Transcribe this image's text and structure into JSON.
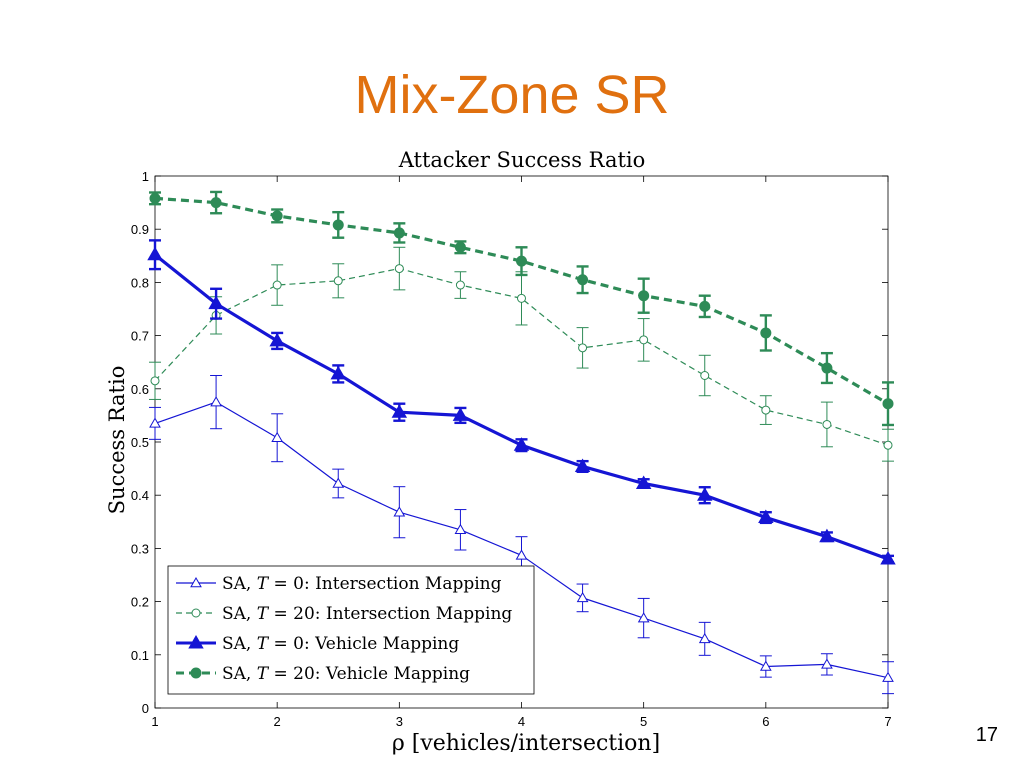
{
  "slide": {
    "title": "Mix-Zone SR",
    "page_number": "17"
  },
  "colors": {
    "title": "#e0700f",
    "blue": "#1515d4",
    "green": "#2e8b57"
  },
  "chart_data": {
    "type": "line",
    "title": "Attacker Success Ratio",
    "xlabel": "ρ [vehicles/intersection]",
    "ylabel": "Success Ratio",
    "xlim": [
      1,
      7
    ],
    "ylim": [
      0,
      1
    ],
    "xticks": [
      1,
      2,
      3,
      4,
      5,
      6,
      7
    ],
    "yticks": [
      0,
      0.1,
      0.2,
      0.3,
      0.4,
      0.5,
      0.6,
      0.7,
      0.8,
      0.9,
      1
    ],
    "grid": false,
    "legend_position": "bottom-left",
    "x": [
      1,
      1.5,
      2,
      2.5,
      3,
      3.5,
      4,
      4.5,
      5,
      5.5,
      6,
      6.5,
      7
    ],
    "series": [
      {
        "name": "SA, T = 0: Intersection Mapping",
        "legend_prefix": "SA, ",
        "legend_var": "T",
        "legend_rest": " = 0:  Intersection Mapping",
        "color": "#1515d4",
        "marker": "triangle",
        "line": "solid",
        "weight": "thin",
        "values": [
          0.535,
          0.575,
          0.508,
          0.422,
          0.368,
          0.335,
          0.287,
          0.207,
          0.169,
          0.13,
          0.078,
          0.082,
          0.057
        ],
        "err": [
          0.03,
          0.05,
          0.045,
          0.027,
          0.048,
          0.038,
          0.035,
          0.026,
          0.037,
          0.031,
          0.02,
          0.02,
          0.03
        ]
      },
      {
        "name": "SA, T = 20: Intersection Mapping",
        "legend_prefix": "SA, ",
        "legend_var": "T",
        "legend_rest": " = 20:  Intersection Mapping",
        "color": "#2e8b57",
        "marker": "circle-open",
        "line": "dashed",
        "weight": "thin",
        "values": [
          0.615,
          0.738,
          0.795,
          0.803,
          0.826,
          0.795,
          0.77,
          0.677,
          0.692,
          0.625,
          0.56,
          0.533,
          0.494
        ],
        "err": [
          0.035,
          0.035,
          0.038,
          0.032,
          0.04,
          0.025,
          0.05,
          0.038,
          0.04,
          0.038,
          0.027,
          0.042,
          0.03
        ]
      },
      {
        "name": "SA, T = 0: Vehicle Mapping",
        "legend_prefix": "SA, ",
        "legend_var": "T",
        "legend_rest": " = 0:  Vehicle Mapping",
        "color": "#1515d4",
        "marker": "triangle",
        "line": "solid",
        "weight": "thick",
        "values": [
          0.852,
          0.76,
          0.69,
          0.628,
          0.556,
          0.55,
          0.494,
          0.454,
          0.422,
          0.4,
          0.358,
          0.322,
          0.28
        ],
        "err": [
          0.027,
          0.028,
          0.015,
          0.016,
          0.016,
          0.014,
          0.011,
          0.01,
          0.008,
          0.015,
          0.01,
          0.008,
          0.006
        ]
      },
      {
        "name": "SA, T = 20: Vehicle Mapping",
        "legend_prefix": "SA, ",
        "legend_var": "T",
        "legend_rest": " = 20:  Vehicle Mapping",
        "color": "#2e8b57",
        "marker": "circle-filled",
        "line": "dashed",
        "weight": "thick",
        "values": [
          0.958,
          0.95,
          0.925,
          0.908,
          0.893,
          0.866,
          0.84,
          0.805,
          0.775,
          0.755,
          0.705,
          0.639,
          0.572
        ],
        "err": [
          0.011,
          0.02,
          0.012,
          0.024,
          0.018,
          0.011,
          0.026,
          0.025,
          0.032,
          0.02,
          0.033,
          0.028,
          0.04
        ]
      }
    ]
  }
}
